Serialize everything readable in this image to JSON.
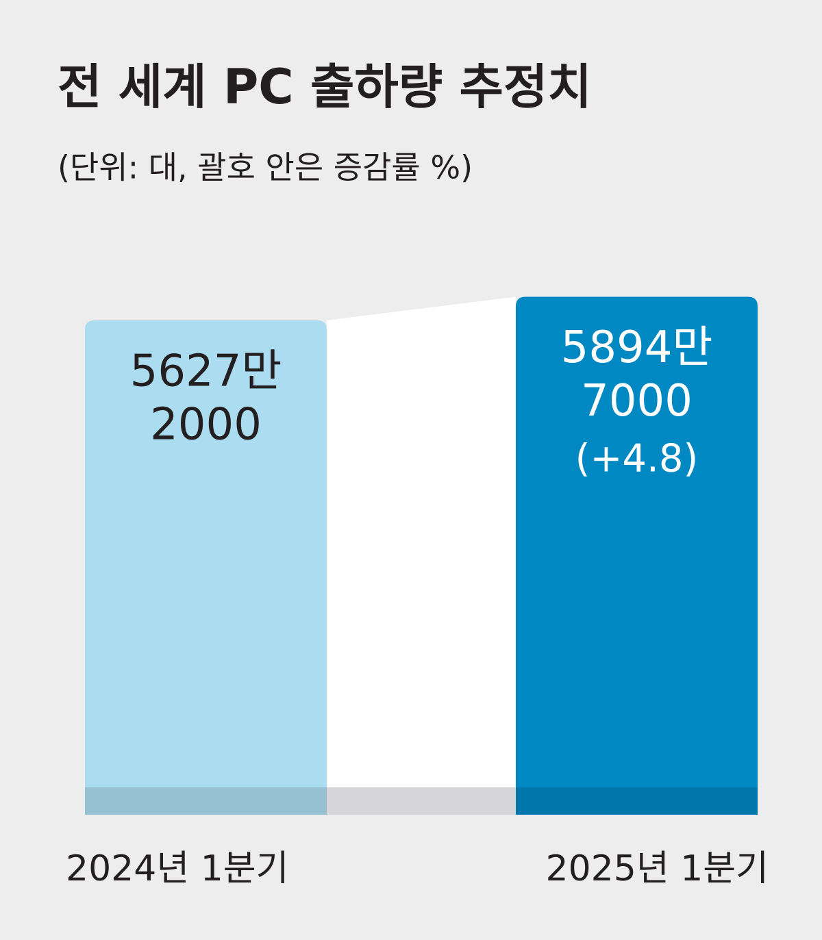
{
  "chart_data": {
    "type": "bar",
    "title": "전 세계 PC 출하량 추정치",
    "subtitle": "(단위: 대, 괄호 안은 증감률 %)",
    "categories": [
      "2024년 1분기",
      "2025년 1분기"
    ],
    "values": [
      56272000,
      58947000
    ],
    "value_labels": [
      [
        "5627만",
        "2000"
      ],
      [
        "5894만",
        "7000"
      ]
    ],
    "growth": {
      "value": 4.8,
      "label": "(+4.8)"
    },
    "colors": [
      "#abdcf0",
      "#0088c2"
    ],
    "label_colors": [
      "#231f20",
      "#ffffff"
    ],
    "ylim": [
      0,
      60000000
    ]
  }
}
